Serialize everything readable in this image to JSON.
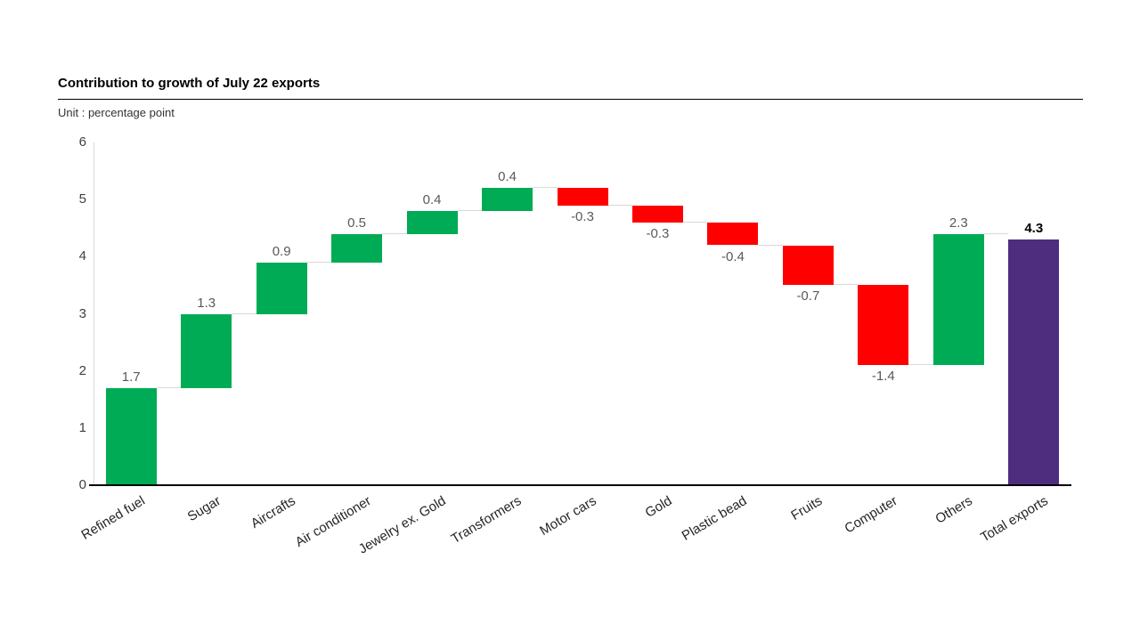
{
  "page": {
    "title": "Contribution to growth of July 22 exports",
    "unit_label": "Unit : percentage point"
  },
  "colors": {
    "increase": "#00AB55",
    "decrease": "#FF0000",
    "total": "#4F2D7E",
    "connector": "#D9D9D9",
    "axis_line": "#D9D9D9",
    "baseline": "#000000",
    "value_label": "#595959",
    "total_value_label": "#000000",
    "tick_label": "#404040",
    "category_label": "#262626"
  },
  "chart_data": {
    "type": "bar",
    "subtype": "waterfall",
    "title": "Contribution to growth of July 22 exports",
    "unit": "percentage point",
    "categories": [
      "Refined fuel",
      "Sugar",
      "Aircrafts",
      "Air conditioner",
      "Jewelry ex. Gold",
      "Transformers",
      "Motor cars",
      "Gold",
      "Plastic bead",
      "Fruits",
      "Computer",
      "Others",
      "Total exports"
    ],
    "values": [
      1.7,
      1.3,
      0.9,
      0.5,
      0.4,
      0.4,
      -0.3,
      -0.3,
      -0.4,
      -0.7,
      -1.4,
      2.3,
      4.3
    ],
    "bar_types": [
      "increase",
      "increase",
      "increase",
      "increase",
      "increase",
      "increase",
      "decrease",
      "decrease",
      "decrease",
      "decrease",
      "decrease",
      "increase",
      "total"
    ],
    "data_labels": [
      "1.7",
      "1.3",
      "0.9",
      "0.5",
      "0.4",
      "0.4",
      "-0.3",
      "-0.3",
      "-0.4",
      "-0.7",
      "-1.4",
      "2.3",
      "4.3"
    ],
    "ylim": [
      0,
      6
    ],
    "yticks": [
      "0",
      "1",
      "2",
      "3",
      "4",
      "5",
      "6"
    ],
    "grid": false,
    "legend": false,
    "xlabel": "",
    "ylabel": ""
  }
}
